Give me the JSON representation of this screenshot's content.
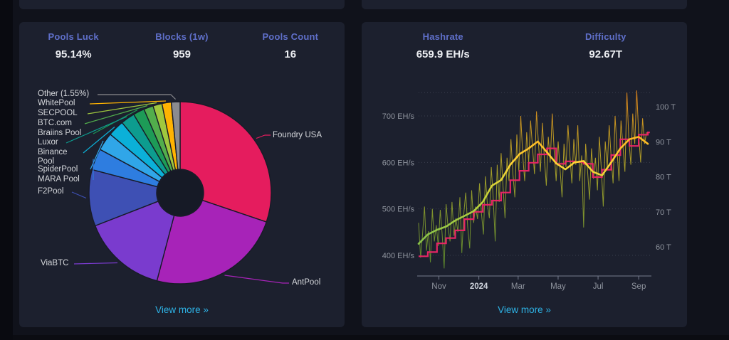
{
  "left_card": {
    "stats": [
      {
        "label": "Pools Luck",
        "value": "95.14%"
      },
      {
        "label": "Blocks (1w)",
        "value": "959"
      },
      {
        "label": "Pools Count",
        "value": "16"
      }
    ],
    "view_more": "View more »"
  },
  "right_card": {
    "stats": [
      {
        "label": "Hashrate",
        "value": "659.9 EH/s"
      },
      {
        "label": "Difficulty",
        "value": "92.67T"
      }
    ],
    "view_more": "View more »"
  },
  "colors": {
    "accent_label": "#5f6fc9",
    "link": "#2eb3e6",
    "difficulty_line": "#e62565",
    "grid": "rgba(200,205,220,0.18)",
    "axis": "#767c8e",
    "tick_text": "#8e939d",
    "tick_text_bold": "#d0d5de",
    "raw_gradient": [
      "#f08c18",
      "#cfa622",
      "#a8a92a",
      "#7f9c2e",
      "#5d8f2c"
    ],
    "ma_gradient": [
      "#fb8c00",
      "#fcaa1c",
      "#fdd335",
      "#c0d23a",
      "#8bc34a",
      "#7cb342"
    ]
  },
  "chart_data": [
    {
      "type": "pie",
      "donut": true,
      "title": "Mining pools distribution (1w)",
      "series": [
        {
          "name": "Foundry USA",
          "value": 30.2,
          "color": "#e51c5e"
        },
        {
          "name": "AntPool",
          "value": 23.9,
          "color": "#a723b8"
        },
        {
          "name": "ViaBTC",
          "value": 15.0,
          "color": "#7a3bce"
        },
        {
          "name": "F2Pool",
          "value": 10.0,
          "color": "#3e50b4"
        },
        {
          "name": "MARA Pool",
          "value": 3.8,
          "color": "#2e7de0"
        },
        {
          "name": "SpiderPool",
          "value": 3.2,
          "color": "#30a6e8"
        },
        {
          "name": "Binance Pool",
          "value": 2.9,
          "color": "#0bb0d8"
        },
        {
          "name": "Luxor",
          "value": 2.5,
          "color": "#0d9c8f"
        },
        {
          "name": "Braiins Pool",
          "value": 2.0,
          "color": "#1d9b57"
        },
        {
          "name": "BTC.com",
          "value": 1.7,
          "color": "#52ae4c"
        },
        {
          "name": "SECPOOL",
          "value": 1.6,
          "color": "#a0c83e"
        },
        {
          "name": "WhitePool",
          "value": 1.65,
          "color": "#ffb302"
        },
        {
          "name": "Other (1.55%)",
          "value": 1.55,
          "color": "#8b8b8f"
        }
      ]
    },
    {
      "type": "line",
      "title": "Hashrate and difficulty, 1 year",
      "x_axis": {
        "range_days": [
          0,
          353
        ],
        "ticks": [
          {
            "label": "Nov",
            "day": 31,
            "bold": false
          },
          {
            "label": "2024",
            "day": 92,
            "bold": true
          },
          {
            "label": "Mar",
            "day": 152,
            "bold": false
          },
          {
            "label": "May",
            "day": 213,
            "bold": false
          },
          {
            "label": "Jul",
            "day": 274,
            "bold": false
          },
          {
            "label": "Sep",
            "day": 336,
            "bold": false
          }
        ]
      },
      "y_left": {
        "unit": "EH/s",
        "tick_values": [
          700,
          600,
          500,
          400
        ],
        "tick_labels": [
          "700 EH/s",
          "600 EH/s",
          "500 EH/s",
          "400 EH/s"
        ],
        "grid_values": [
          750,
          700,
          600,
          500,
          400
        ]
      },
      "y_right": {
        "unit": "T",
        "tick_values": [
          100,
          90,
          80,
          70,
          60
        ],
        "tick_labels": [
          "100 T",
          "90 T",
          "80 T",
          "70 T",
          "60 T"
        ]
      },
      "series": [
        {
          "name": "hashrate-daily",
          "axis": "left",
          "step_days": 3,
          "start_day": 0,
          "values": [
            470,
            395,
            445,
            505,
            410,
            452,
            385,
            500,
            430,
            465,
            420,
            498,
            445,
            372,
            510,
            460,
            430,
            515,
            442,
            480,
            450,
            525,
            405,
            490,
            535,
            460,
            415,
            540,
            470,
            505,
            478,
            555,
            490,
            445,
            570,
            510,
            480,
            590,
            520,
            430,
            595,
            515,
            620,
            545,
            480,
            610,
            560,
            650,
            575,
            525,
            660,
            580,
            700,
            615,
            560,
            665,
            600,
            690,
            630,
            575,
            710,
            640,
            580,
            685,
            610,
            550,
            655,
            600,
            705,
            625,
            560,
            645,
            585,
            525,
            640,
            590,
            680,
            615,
            555,
            650,
            595,
            680,
            560,
            615,
            460,
            640,
            580,
            520,
            630,
            565,
            610,
            540,
            655,
            585,
            505,
            645,
            590,
            680,
            610,
            555,
            700,
            625,
            560,
            690,
            635,
            580,
            750,
            650,
            595,
            705,
            640,
            755,
            660,
            600,
            695,
            640,
            665
          ]
        },
        {
          "name": "hashrate-7d-average",
          "axis": "left",
          "step_days": 14,
          "start_day": 0,
          "values": [
            425,
            445,
            455,
            462,
            475,
            485,
            495,
            515,
            550,
            562,
            595,
            618,
            630,
            645,
            622,
            598,
            585,
            600,
            603,
            580,
            572,
            600,
            630,
            650,
            655,
            640
          ]
        },
        {
          "name": "difficulty",
          "axis": "right",
          "step_days": 14,
          "start_day": 0,
          "step_line": true,
          "values": [
            57.3,
            58.5,
            61.0,
            62.5,
            64.7,
            67.9,
            70.0,
            72.0,
            73.2,
            75.5,
            79.0,
            81.7,
            84.0,
            86.4,
            88.1,
            83.7,
            84.4,
            84.2,
            83.7,
            79.9,
            82.0,
            86.2,
            90.7,
            88.8,
            92.0,
            92.67
          ]
        }
      ]
    }
  ]
}
